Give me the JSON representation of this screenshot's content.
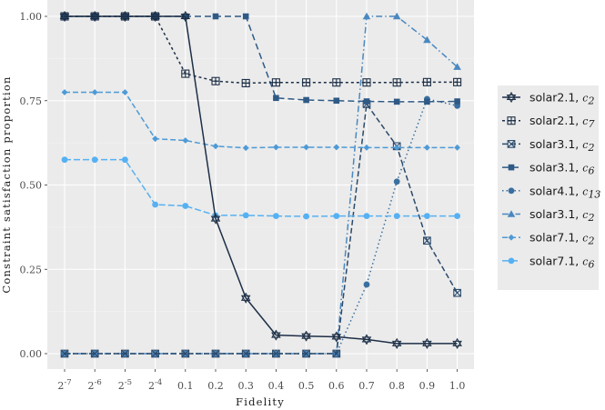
{
  "chart_data": {
    "type": "line",
    "xlabel": "Fidelity",
    "ylabel": "Constraint satisfaction proportion",
    "ylim": [
      0,
      1
    ],
    "grid": true,
    "legend_position": "right",
    "categories": [
      {
        "base": "2",
        "exp": "-7"
      },
      {
        "base": "2",
        "exp": "-6"
      },
      {
        "base": "2",
        "exp": "-5"
      },
      {
        "base": "2",
        "exp": "-4"
      },
      {
        "base": "0.1",
        "exp": ""
      },
      {
        "base": "0.2",
        "exp": ""
      },
      {
        "base": "0.3",
        "exp": ""
      },
      {
        "base": "0.4",
        "exp": ""
      },
      {
        "base": "0.5",
        "exp": ""
      },
      {
        "base": "0.6",
        "exp": ""
      },
      {
        "base": "0.7",
        "exp": ""
      },
      {
        "base": "0.8",
        "exp": ""
      },
      {
        "base": "0.9",
        "exp": ""
      },
      {
        "base": "1.0",
        "exp": ""
      }
    ],
    "yticks": [
      {
        "value": 0,
        "label": "0.00"
      },
      {
        "value": 0.25,
        "label": "0.25"
      },
      {
        "value": 0.5,
        "label": "0.50"
      },
      {
        "value": 0.75,
        "label": "0.75"
      },
      {
        "value": 1,
        "label": "1.00"
      }
    ],
    "series": [
      {
        "name": "solar2.1",
        "sub": "2",
        "color": "#1d2f47",
        "dash": "",
        "marker": "star",
        "values": [
          1.0,
          1.0,
          1.0,
          1.0,
          1.0,
          0.4,
          0.165,
          0.055,
          0.052,
          0.05,
          0.042,
          0.03,
          0.03,
          0.03
        ]
      },
      {
        "name": "solar2.1",
        "sub": "7",
        "color": "#1d2f47",
        "dash": "3,3",
        "marker": "squareplus",
        "values": [
          1.0,
          1.0,
          1.0,
          1.0,
          0.83,
          0.808,
          0.802,
          0.804,
          0.804,
          0.804,
          0.804,
          0.804,
          0.805,
          0.805
        ]
      },
      {
        "name": "solar3.1",
        "sub": "2",
        "color": "#2b4a6b",
        "dash": "6,3",
        "marker": "squarex",
        "values": [
          0,
          0,
          0,
          0,
          0,
          0,
          0,
          0,
          0,
          0,
          0.74,
          0.615,
          0.335,
          0.18
        ]
      },
      {
        "name": "solar3.1",
        "sub": "6",
        "color": "#2f5a86",
        "dash": "7,4",
        "marker": "square",
        "values": [
          1.0,
          1.0,
          1.0,
          1.0,
          1.0,
          1.0,
          1.0,
          0.758,
          0.752,
          0.75,
          0.748,
          0.747,
          0.747,
          0.748
        ]
      },
      {
        "name": "solar4.1",
        "sub": "13",
        "color": "#3a70a0",
        "dash": "1.5,3",
        "marker": "circle",
        "values": [
          0,
          0,
          0,
          0,
          0,
          0,
          0,
          0,
          0,
          0,
          0.205,
          0.51,
          0.755,
          0.735
        ]
      },
      {
        "name": "solar3.1",
        "sub": "2",
        "color": "#4a88c0",
        "dash": "7,3,1.5,3",
        "marker": "triangle",
        "values": [
          0,
          0,
          0,
          0,
          0,
          0,
          0,
          0,
          0,
          0,
          1.0,
          1.0,
          0.93,
          0.85
        ]
      },
      {
        "name": "solar7.1",
        "sub": "2",
        "color": "#4d9ad6",
        "dash": "6,3",
        "marker": "diamond",
        "values": [
          0.775,
          0.775,
          0.775,
          0.637,
          0.632,
          0.615,
          0.61,
          0.612,
          0.612,
          0.612,
          0.611,
          0.611,
          0.611,
          0.611
        ]
      },
      {
        "name": "solar7.1",
        "sub": "6",
        "color": "#56b1f2",
        "dash": "7,3",
        "marker": "circle",
        "values": [
          0.575,
          0.575,
          0.575,
          0.442,
          0.438,
          0.41,
          0.41,
          0.408,
          0.407,
          0.408,
          0.408,
          0.408,
          0.408,
          0.408
        ]
      }
    ]
  }
}
